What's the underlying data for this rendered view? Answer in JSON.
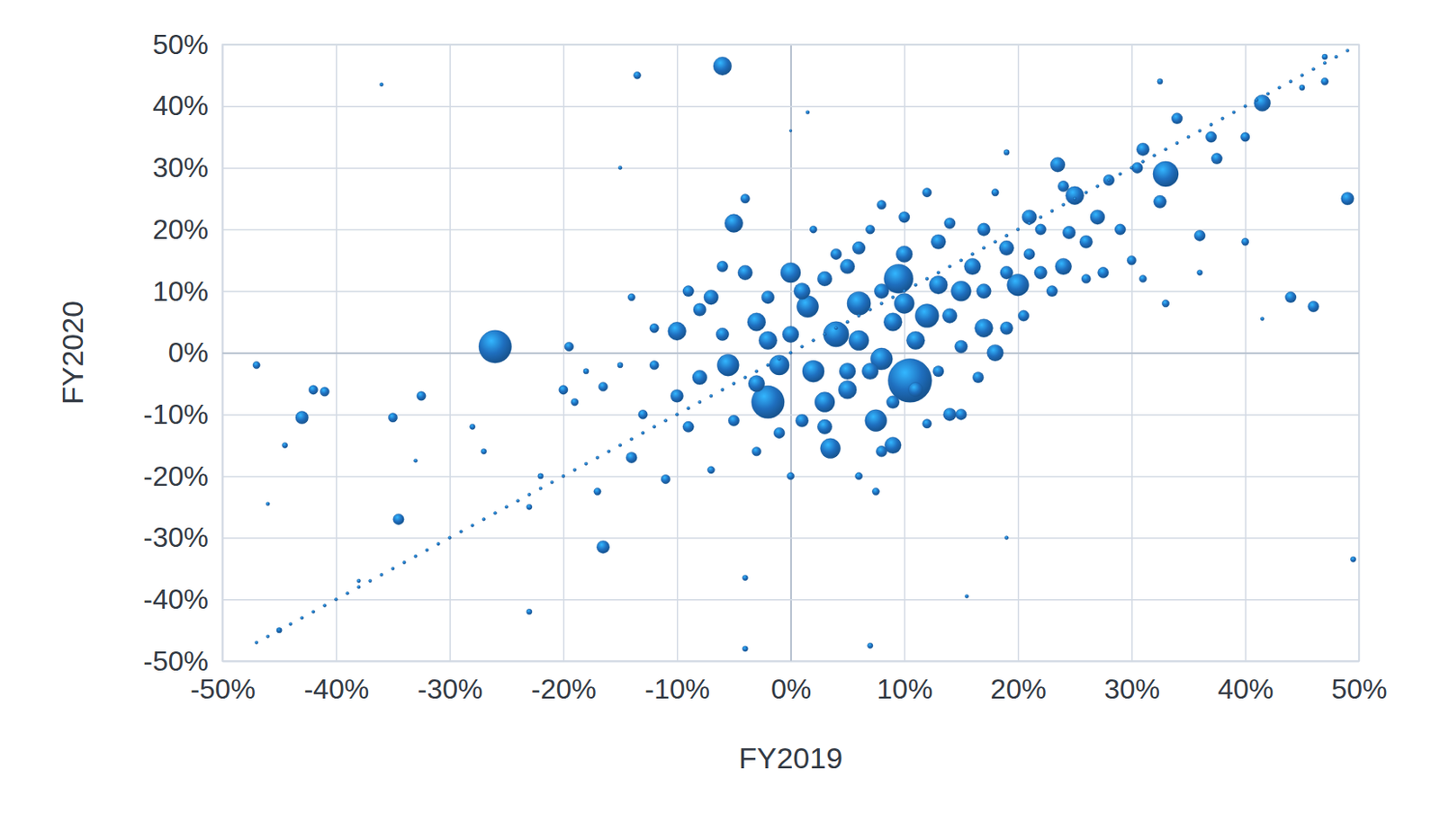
{
  "chart_data": {
    "type": "scatter",
    "x_label": "FY2019",
    "y_label": "FY2020",
    "color": "#1f6fbf",
    "grid": true,
    "xlim": [
      -50,
      50
    ],
    "ylim": [
      -50,
      50
    ],
    "xticks": [
      {
        "value": -50,
        "label": "-50%"
      },
      {
        "value": -40,
        "label": "-40%"
      },
      {
        "value": -30,
        "label": "-30%"
      },
      {
        "value": -20,
        "label": "-20%"
      },
      {
        "value": -10,
        "label": "-10%"
      },
      {
        "value": 0,
        "label": "0%"
      },
      {
        "value": 10,
        "label": "10%"
      },
      {
        "value": 20,
        "label": "20%"
      },
      {
        "value": 30,
        "label": "30%"
      },
      {
        "value": 40,
        "label": "40%"
      },
      {
        "value": 50,
        "label": "50%"
      }
    ],
    "yticks": [
      {
        "value": -50,
        "label": "-50%"
      },
      {
        "value": -40,
        "label": "-40%"
      },
      {
        "value": -30,
        "label": "-30%"
      },
      {
        "value": -20,
        "label": "-20%"
      },
      {
        "value": -10,
        "label": "-10%"
      },
      {
        "value": 0,
        "label": "0%"
      },
      {
        "value": 10,
        "label": "10%"
      },
      {
        "value": 20,
        "label": "20%"
      },
      {
        "value": 30,
        "label": "30%"
      },
      {
        "value": 40,
        "label": "40%"
      },
      {
        "value": 50,
        "label": "50%"
      }
    ],
    "x": [
      -26,
      10.5,
      -6,
      -5,
      33,
      9.5,
      -2,
      3.5,
      7.5,
      -5.5,
      -10,
      20,
      41.5,
      49,
      44,
      46,
      -43,
      -35,
      -34.5,
      -16.5,
      -47,
      -42,
      -41,
      -32.5,
      -13.5,
      36,
      0,
      1.5,
      4,
      6,
      8,
      12,
      15,
      17,
      18,
      14,
      9,
      -3,
      -1,
      2,
      5,
      3,
      -8,
      -7,
      23.5,
      25,
      24,
      27,
      21,
      10,
      13,
      16,
      19,
      11,
      7,
      -4,
      1,
      5,
      -2,
      31,
      34,
      37,
      40,
      37.5,
      32.5,
      29,
      26,
      28,
      30.5,
      22,
      20.5,
      19,
      16.5,
      15,
      12,
      8,
      7.5,
      6,
      -5,
      -10,
      -13,
      -14,
      -11,
      -16.5,
      -19,
      -20,
      -19.5,
      -17,
      -12,
      -9,
      -7,
      -3,
      0,
      -4,
      -14,
      -12,
      -6,
      -8,
      2,
      4,
      7,
      8,
      12,
      10,
      14,
      17,
      18,
      22,
      24.5,
      26,
      27.5,
      30,
      31,
      33,
      36,
      40,
      3,
      5,
      6,
      9,
      13,
      14,
      10,
      11,
      1,
      -1,
      0,
      -3,
      -6,
      3,
      6,
      17,
      19,
      21,
      23,
      15,
      13,
      9,
      24,
      -9,
      -2,
      8,
      -28,
      -27,
      -22,
      -18,
      -15,
      -23,
      -4,
      -4,
      7,
      15.5,
      19,
      49.5,
      41.5,
      -36,
      1.5,
      19,
      32.5,
      45,
      47,
      47,
      -44.5,
      -46,
      -33,
      0,
      -15,
      -38,
      -45,
      -23,
      -47,
      -46,
      -45,
      -44,
      -43,
      -42,
      -41,
      -40,
      -39,
      -38,
      -37,
      -36,
      -35,
      -34,
      -33,
      -32,
      -31,
      -30,
      -29,
      -28,
      -27,
      -26,
      -25,
      -24,
      -23,
      -22,
      -21,
      -20,
      -19,
      -18,
      -17,
      -16,
      -15,
      -14,
      -13,
      -12,
      -11,
      -10,
      -9,
      -8,
      -7,
      -6,
      -5,
      -4,
      -3,
      -2,
      -1,
      0,
      1,
      2,
      3,
      4,
      5,
      6,
      7,
      8,
      9,
      10,
      11,
      12,
      13,
      14,
      15,
      16,
      17,
      18,
      19,
      20,
      21,
      22,
      23,
      24,
      25,
      26,
      27,
      28,
      29,
      30,
      31,
      32,
      33,
      34,
      35,
      36,
      37,
      38,
      39,
      40,
      41,
      42,
      43,
      44,
      45,
      46,
      47,
      48,
      49
    ],
    "values": [
      1,
      -4.5,
      46.5,
      21,
      29,
      12,
      -8,
      -15.5,
      -11,
      -2,
      3.5,
      11,
      40.5,
      25,
      9,
      7.5,
      -10.5,
      -10.5,
      -27,
      -31.5,
      -2,
      -6,
      -6.3,
      -7,
      45,
      19,
      13,
      7.5,
      3,
      8,
      -1,
      6,
      10,
      4,
      0,
      -10,
      -15,
      5,
      -2,
      -3,
      -6,
      -8,
      -4,
      9,
      30.5,
      25.5,
      14,
      22,
      22,
      16,
      18,
      14,
      17,
      2,
      -3,
      13,
      10,
      14,
      2,
      33,
      38,
      35,
      35,
      31.5,
      24.5,
      20,
      18,
      28,
      30,
      13,
      6,
      4,
      -4,
      -10,
      -11.5,
      -16,
      -22.5,
      -20,
      -11,
      -7,
      -10,
      -17,
      -20.5,
      -5.5,
      -8,
      -6,
      1,
      -22.5,
      -2,
      -12,
      -19,
      -16,
      -20,
      25,
      9,
      4,
      14,
      7,
      20,
      16,
      20,
      24,
      26,
      22,
      21,
      20,
      26,
      20,
      19.5,
      12,
      13,
      15,
      12,
      8,
      13,
      18,
      -12,
      -3,
      2,
      5,
      11,
      6,
      8,
      -6,
      -11,
      -13,
      3,
      -5,
      3,
      12,
      17,
      10,
      13,
      16,
      10,
      1,
      -3,
      -8,
      27,
      10,
      9,
      10,
      -12,
      -16,
      -20,
      -3,
      -2,
      -42,
      -48,
      -36.5,
      -47.5,
      -39.5,
      -30,
      -33.5,
      5.5,
      43.5,
      39,
      32.5,
      44,
      43,
      44,
      48,
      -15,
      -24.5,
      -17.5,
      36,
      30,
      -37,
      -45,
      -25,
      -47,
      -46,
      -45,
      -44,
      -43,
      -42,
      -41,
      -40,
      -39,
      -38,
      -37,
      -36,
      -35,
      -34,
      -33,
      -32,
      -31,
      -30,
      -29,
      -28,
      -27,
      -26,
      -25,
      -24,
      -23,
      -22,
      -21,
      -20,
      -19,
      -18,
      -17,
      -16,
      -15,
      -14,
      -13,
      -12,
      -11,
      -10,
      -9,
      -8,
      -7,
      -6,
      -5,
      -4,
      -3,
      -2,
      -1,
      0,
      1,
      2,
      3,
      4,
      5,
      6,
      7,
      8,
      9,
      10,
      11,
      12,
      13,
      14,
      15,
      16,
      17,
      18,
      19,
      20,
      21,
      22,
      23,
      24,
      25,
      26,
      27,
      28,
      29,
      30,
      31,
      32,
      33,
      34,
      35,
      36,
      37,
      38,
      39,
      40,
      41,
      42,
      43,
      44,
      45,
      46,
      47,
      48,
      49
    ],
    "sizes": [
      324,
      576,
      100,
      100,
      196,
      256,
      324,
      121,
      144,
      144,
      100,
      144,
      81,
      49,
      36,
      36,
      49,
      25,
      36,
      49,
      16,
      25,
      25,
      25,
      16,
      36,
      121,
      144,
      196,
      169,
      144,
      169,
      121,
      100,
      81,
      49,
      81,
      100,
      121,
      144,
      100,
      121,
      64,
      64,
      64,
      100,
      81,
      64,
      64,
      81,
      64,
      81,
      64,
      100,
      81,
      64,
      81,
      64,
      100,
      49,
      36,
      36,
      25,
      36,
      49,
      36,
      49,
      36,
      36,
      49,
      36,
      49,
      36,
      36,
      25,
      36,
      16,
      16,
      36,
      49,
      25,
      36,
      25,
      25,
      16,
      25,
      25,
      16,
      25,
      36,
      16,
      25,
      16,
      25,
      16,
      25,
      36,
      49,
      16,
      36,
      25,
      25,
      25,
      36,
      36,
      49,
      16,
      36,
      49,
      25,
      36,
      25,
      16,
      16,
      9,
      16,
      64,
      81,
      121,
      100,
      100,
      64,
      121,
      64,
      49,
      36,
      81,
      81,
      49,
      64,
      49,
      64,
      49,
      36,
      36,
      49,
      36,
      49,
      36,
      36,
      49,
      64,
      9,
      9,
      9,
      9,
      9,
      9,
      9,
      9,
      9,
      4,
      4,
      9,
      4,
      4,
      4,
      9,
      9,
      9,
      16,
      9,
      9,
      4,
      4,
      2,
      4,
      4,
      9,
      9,
      3,
      3,
      3,
      3,
      3,
      3,
      3,
      3,
      3,
      3,
      3,
      3,
      3,
      3,
      3,
      3,
      3,
      3,
      3,
      3,
      3,
      3,
      3,
      3,
      3,
      3,
      3,
      3,
      3,
      3,
      3,
      3,
      3,
      3,
      3,
      3,
      3,
      3,
      3,
      3,
      3,
      3,
      3,
      3,
      3,
      3,
      3,
      3,
      3,
      3,
      3,
      3,
      3,
      3,
      3,
      3,
      3,
      3,
      3,
      3,
      3,
      3,
      3,
      3,
      3,
      3,
      3,
      3,
      3,
      3,
      3,
      3,
      3,
      3,
      3,
      3,
      3,
      3,
      3,
      3,
      3,
      3,
      3,
      3,
      3,
      3,
      3,
      3,
      3,
      3,
      3,
      3,
      3,
      3,
      3,
      3,
      3
    ]
  }
}
